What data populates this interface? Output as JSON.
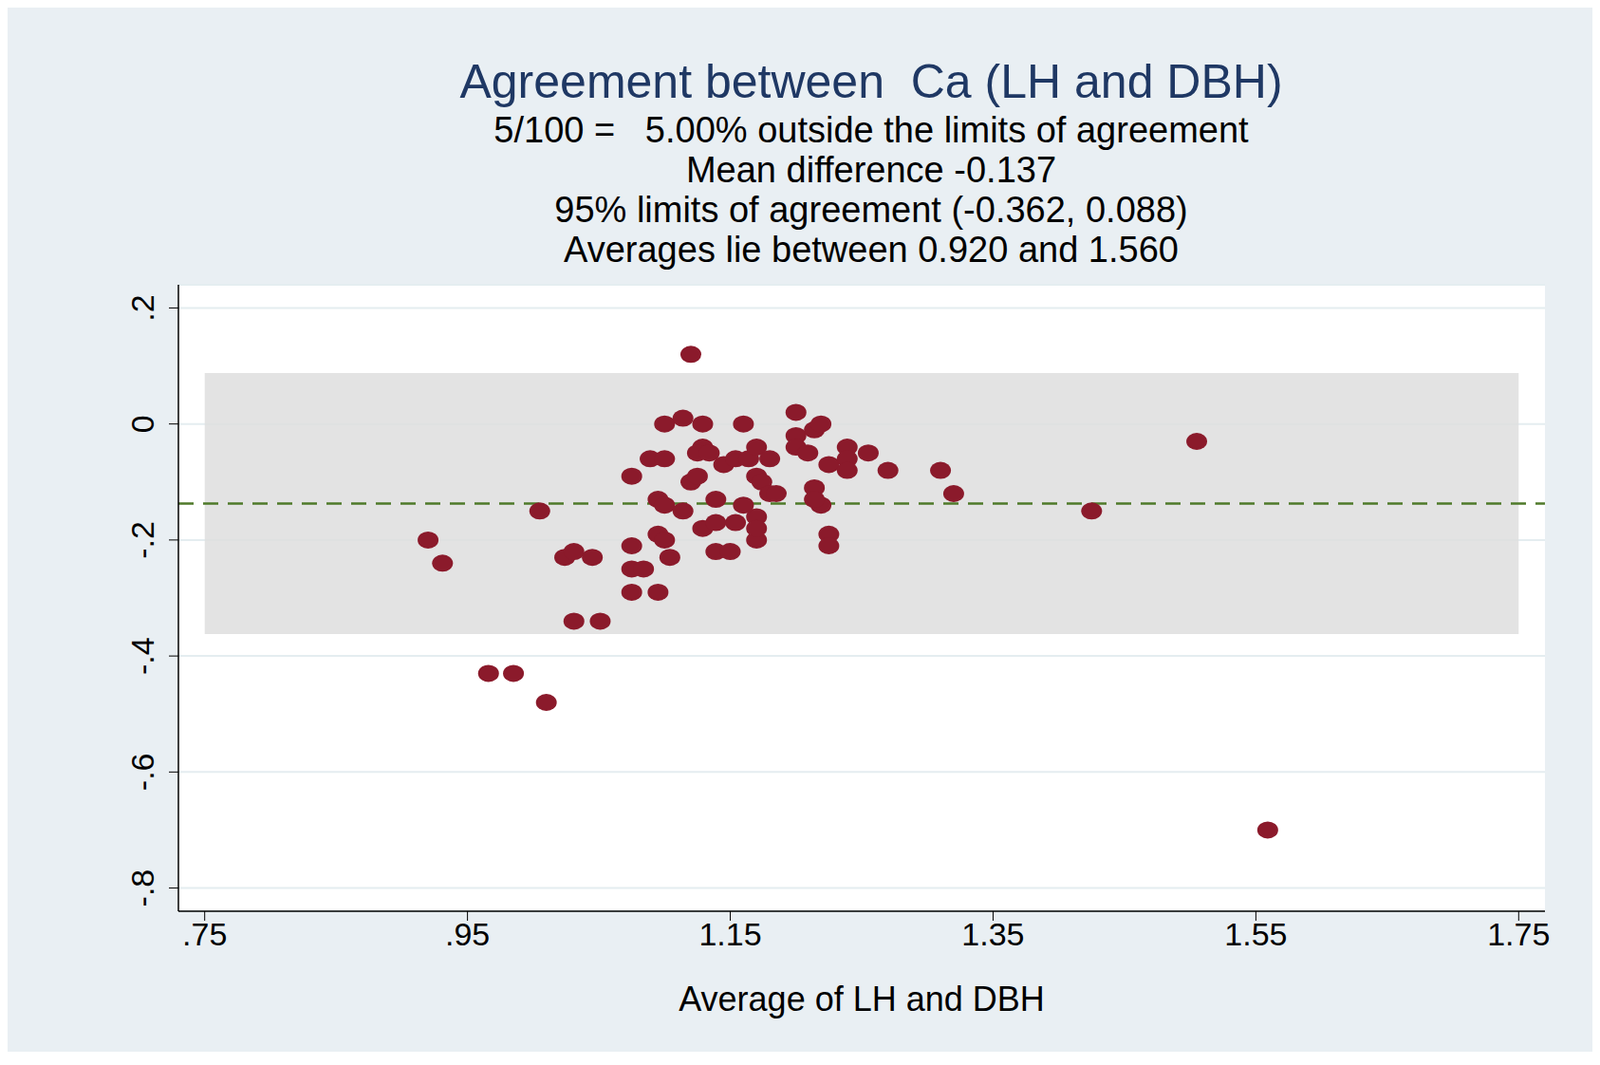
{
  "chart_data": {
    "type": "scatter",
    "title": "Agreement between  Ca (LH and DBH)",
    "subtitle": [
      "5/100 =   5.00% outside the limits of agreement",
      "Mean difference -0.137",
      "95% limits of agreement (-0.362, 0.088)",
      "Averages lie between 0.920 and 1.560"
    ],
    "x_label": "Average of LH and DBH",
    "mean_difference": -0.137,
    "limits_of_agreement": [
      -0.362,
      0.088
    ],
    "color": "#8b1a2b",
    "marker": "circle",
    "grid": true,
    "x": [
      1.12,
      0.92,
      0.931,
      1.005,
      0.966,
      0.985,
      1.01,
      1.031,
      1.051,
      1.024,
      1.031,
      1.045,
      1.075,
      1.075,
      1.075,
      1.075,
      1.084,
      1.095,
      1.095,
      1.1,
      1.104,
      1.089,
      1.1,
      1.1,
      1.114,
      1.129,
      1.095,
      1.1,
      1.114,
      1.12,
      1.125,
      1.129,
      1.125,
      1.134,
      1.129,
      1.139,
      1.139,
      1.139,
      1.15,
      1.145,
      1.154,
      1.154,
      1.16,
      1.164,
      1.17,
      1.17,
      1.174,
      1.17,
      1.17,
      1.17,
      1.18,
      1.18,
      1.185,
      1.16,
      1.2,
      1.2,
      1.2,
      1.209,
      1.214,
      1.219,
      1.214,
      1.219,
      1.214,
      1.225,
      1.225,
      1.225,
      1.239,
      1.239,
      1.239,
      1.255,
      1.27,
      1.31,
      1.32,
      1.425,
      1.505,
      1.559
    ],
    "values": [
      0.12,
      -0.2,
      -0.24,
      -0.15,
      -0.43,
      -0.43,
      -0.48,
      -0.34,
      -0.34,
      -0.23,
      -0.22,
      -0.23,
      -0.09,
      -0.21,
      -0.25,
      -0.29,
      -0.25,
      -0.29,
      -0.19,
      -0.2,
      -0.23,
      -0.06,
      -0.06,
      0,
      0.01,
      0,
      -0.13,
      -0.14,
      -0.15,
      -0.1,
      -0.09,
      -0.04,
      -0.05,
      -0.05,
      -0.18,
      -0.13,
      -0.17,
      -0.22,
      -0.22,
      -0.07,
      -0.06,
      -0.17,
      0,
      -0.06,
      -0.04,
      -0.09,
      -0.1,
      -0.16,
      -0.2,
      -0.18,
      -0.12,
      -0.06,
      -0.12,
      -0.14,
      0.02,
      -0.02,
      -0.04,
      -0.05,
      -0.01,
      0,
      -0.11,
      -0.14,
      -0.13,
      -0.07,
      -0.19,
      -0.21,
      -0.04,
      -0.06,
      -0.08,
      -0.05,
      -0.08,
      -0.08,
      -0.12,
      -0.15,
      -0.03,
      -0.7
    ],
    "xlim": [
      0.73,
      1.77
    ],
    "xticks": [
      {
        "value": 0.75,
        "label": ".75"
      },
      {
        "value": 0.95,
        "label": ".95"
      },
      {
        "value": 1.15,
        "label": "1.15"
      },
      {
        "value": 1.35,
        "label": "1.35"
      },
      {
        "value": 1.55,
        "label": "1.55"
      },
      {
        "value": 1.75,
        "label": "1.75"
      }
    ],
    "ylim": [
      -0.84,
      0.24
    ],
    "yticks": [
      {
        "value": -0.8,
        "label": "-.8"
      },
      {
        "value": -0.6,
        "label": "-.6"
      },
      {
        "value": -0.4,
        "label": "-.4"
      },
      {
        "value": -0.2,
        "label": "-.2"
      },
      0,
      {
        "value": 0.2,
        "label": ".2"
      }
    ]
  }
}
